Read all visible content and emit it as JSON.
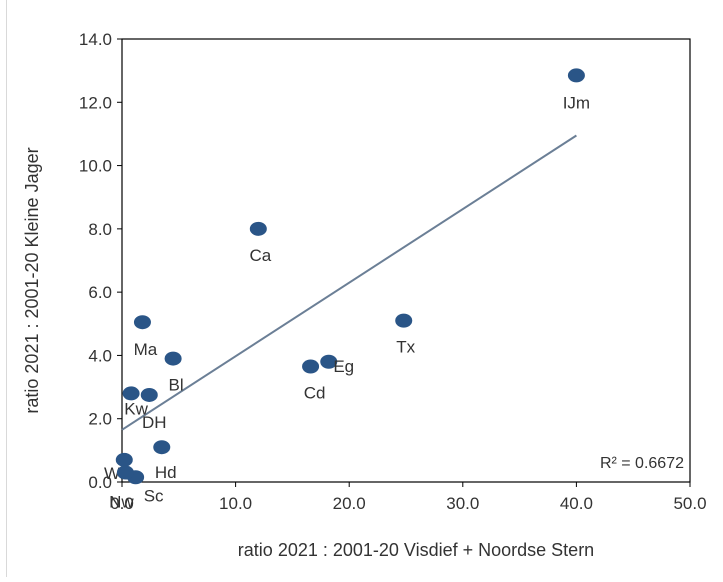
{
  "chart_data": {
    "type": "scatter",
    "xlabel": "ratio 2021 : 2001-20 Visdief + Noordse Stern",
    "ylabel": "ratio 2021 : 2001-20 Kleine Jager",
    "xlim": [
      0,
      50
    ],
    "ylim": [
      0,
      14
    ],
    "x_ticks": [
      "0.0",
      "10.0",
      "20.0",
      "30.0",
      "40.0",
      "50.0"
    ],
    "y_ticks": [
      "0.0",
      "2.0",
      "4.0",
      "6.0",
      "8.0",
      "10.0",
      "12.0",
      "14.0"
    ],
    "grid": false,
    "marker_color": "#2a5587",
    "trendline_color": "#6b7f96",
    "points": [
      {
        "label": "IJm",
        "x": 40.0,
        "y": 12.85
      },
      {
        "label": "Ca",
        "x": 12.0,
        "y": 8.0
      },
      {
        "label": "Tx",
        "x": 24.8,
        "y": 5.1
      },
      {
        "label": "Ma",
        "x": 1.8,
        "y": 5.05
      },
      {
        "label": "Bl",
        "x": 4.5,
        "y": 3.9
      },
      {
        "label": "Cd",
        "x": 16.6,
        "y": 3.65
      },
      {
        "label": "Eg",
        "x": 18.2,
        "y": 3.8
      },
      {
        "label": "Kw",
        "x": 0.8,
        "y": 2.8
      },
      {
        "label": "DH",
        "x": 2.4,
        "y": 2.75
      },
      {
        "label": "Hd",
        "x": 3.5,
        "y": 1.1
      },
      {
        "label": "Wk",
        "x": 0.2,
        "y": 0.7
      },
      {
        "label": "Sc",
        "x": 1.2,
        "y": 0.15
      },
      {
        "label": "Nw",
        "x": 0.3,
        "y": 0.3
      }
    ],
    "trendline": {
      "x": [
        0,
        40
      ],
      "y": [
        1.65,
        10.95
      ]
    },
    "r_squared_text": "R² = 0.6672"
  }
}
